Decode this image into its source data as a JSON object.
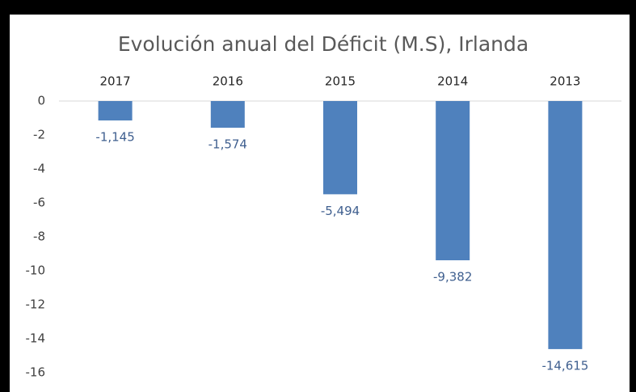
{
  "chart_data": {
    "type": "bar",
    "title": "Evolución anual del Déficit (M.S), Irlanda",
    "categories": [
      "2017",
      "2016",
      "2015",
      "2014",
      "2013"
    ],
    "values": [
      -1.145,
      -1.574,
      -5.494,
      -9.382,
      -14.615
    ],
    "value_labels": [
      "-1,145",
      "-1,574",
      "-5,494",
      "-9,382",
      "-14,615"
    ],
    "color": "#4f81bd",
    "ylim": [
      -16,
      0
    ],
    "yticks": [
      0,
      -2,
      -4,
      -6,
      -8,
      -10,
      -12,
      -14,
      -16
    ],
    "grid": false
  }
}
